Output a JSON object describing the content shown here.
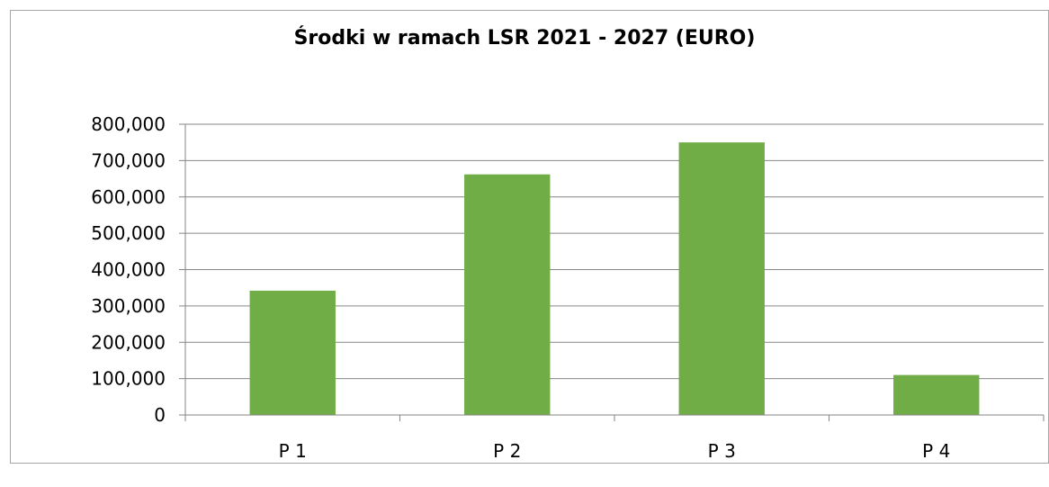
{
  "chart_data": {
    "type": "bar",
    "title": "Środki w ramach LSR 2021 - 2027 (EURO)",
    "xlabel": "",
    "ylabel": "",
    "categories": [
      "P 1",
      "P 2",
      "P 3",
      "P 4"
    ],
    "values": [
      342000,
      662000,
      750000,
      110000
    ],
    "ylim": [
      0,
      800000
    ],
    "y_ticks": [
      0,
      100000,
      200000,
      300000,
      400000,
      500000,
      600000,
      700000,
      800000
    ],
    "y_tick_labels": [
      "0",
      "100,000",
      "200,000",
      "300,000",
      "400,000",
      "500,000",
      "600,000",
      "700,000",
      "800,000"
    ],
    "grid": true,
    "legend": "none",
    "bar_color": "#70ad47",
    "grid_color": "#868686"
  }
}
